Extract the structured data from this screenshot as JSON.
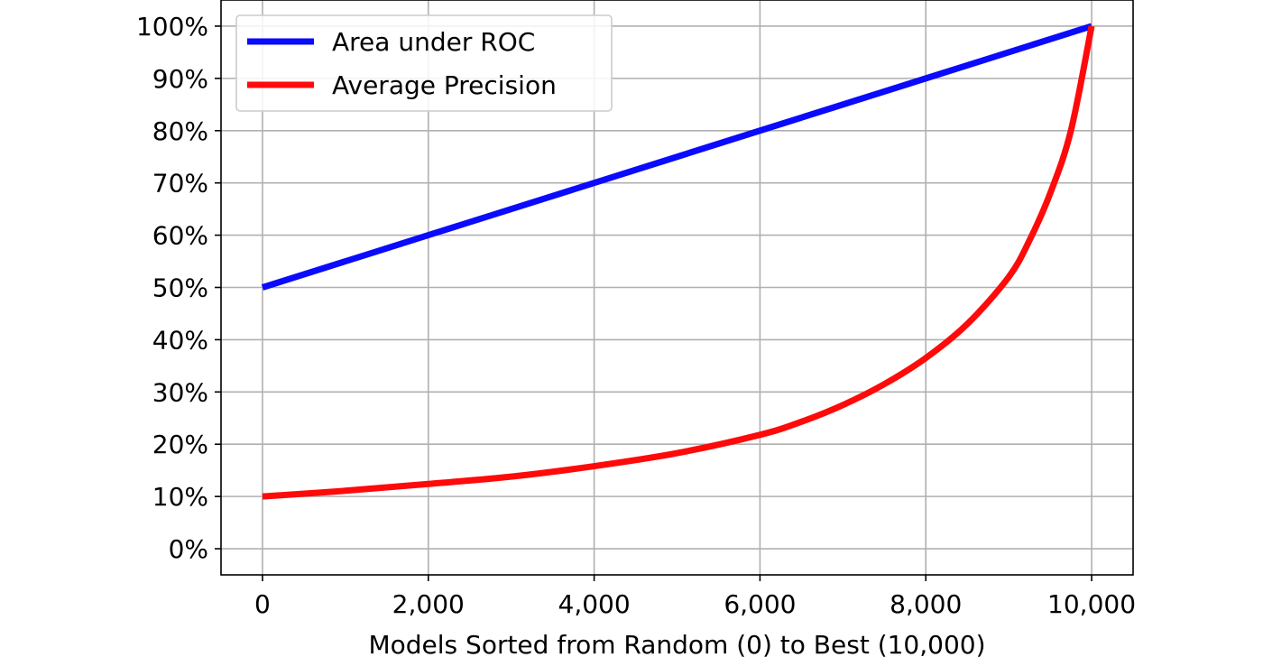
{
  "chart_data": {
    "type": "line",
    "xlabel": "Models Sorted from Random (0) to Best (10,000)",
    "ylabel": "",
    "xlim": [
      -500,
      10500
    ],
    "ylim": [
      -0.05,
      1.05
    ],
    "grid": true,
    "legend_position": "top-left",
    "x_ticks": [
      0,
      2000,
      4000,
      6000,
      8000,
      10000
    ],
    "x_tick_labels": [
      "0",
      "2,000",
      "4,000",
      "6,000",
      "8,000",
      "10,000"
    ],
    "y_ticks": [
      0,
      0.1,
      0.2,
      0.3,
      0.4,
      0.5,
      0.6,
      0.7,
      0.8,
      0.9,
      1.0
    ],
    "y_tick_labels": [
      "0%",
      "10%",
      "20%",
      "30%",
      "40%",
      "50%",
      "60%",
      "70%",
      "80%",
      "90%",
      "100%"
    ],
    "series": [
      {
        "name": "Area under ROC",
        "color": "#0a0aff",
        "x": [
          0,
          2000,
          4000,
          6000,
          8000,
          10000
        ],
        "y": [
          0.5,
          0.6,
          0.7,
          0.8,
          0.9,
          1.0
        ]
      },
      {
        "name": "Average Precision",
        "color": "#ff0a0a",
        "x": [
          0,
          1000,
          2000,
          3000,
          4000,
          5000,
          6000,
          6500,
          7000,
          7500,
          8000,
          8500,
          9000,
          9250,
          9500,
          9750,
          10000
        ],
        "y": [
          0.1,
          0.111,
          0.124,
          0.138,
          0.158,
          0.183,
          0.218,
          0.243,
          0.275,
          0.315,
          0.365,
          0.43,
          0.52,
          0.59,
          0.68,
          0.8,
          1.0
        ]
      }
    ]
  }
}
